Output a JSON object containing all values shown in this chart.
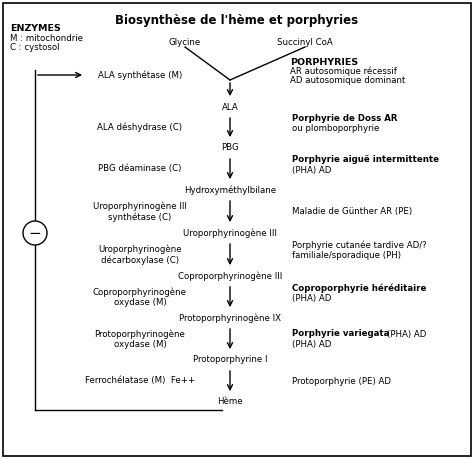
{
  "title": "Biosynthèse de l'hème et porphyries",
  "background": "#ffffff",
  "enzymes_header": "ENZYMES",
  "enzymes_lines": [
    "M : mitochondrie",
    "C : cystosol"
  ],
  "porphyries_header": "PORPHYRIES",
  "porphyries_legend": [
    "AR autosomique récessif",
    "AD autosomique dominant"
  ],
  "glycine": "Glycine",
  "succinyl": "Succinyl CoA",
  "metabolites": [
    "ALA",
    "PBG",
    "Hydroxyméthylbilane",
    "Uroporphyrinogène III",
    "Coproporphyrinogène III",
    "Protoporphyrinogène IX",
    "Protoporphyrine I",
    "Hème"
  ],
  "left_enzymes": [
    "ALA synthétase (M)",
    "ALA déshydrase (C)",
    "PBG déaminase (C)",
    "Uroporphyrinogène III\nsynthétase (C)",
    "Uroporphyrinogène\ndécarboxylase (C)",
    "Coproporphyrinogène\noxydase (M)",
    "Protoporphyrinogène\noxydase (M)",
    "Ferrochélatase (M)  Fe++"
  ],
  "right_diseases": [
    [
      "Porphyrie de Doss AR",
      "ou plomboporphyrie"
    ],
    [
      "Porphyrie aiguë intermittente",
      "(PHA) AD"
    ],
    [
      "Maladie de Günther AR (PE)"
    ],
    [
      "Porphyrie cutanée tardive AD/?",
      "familiale/sporadique (PH)"
    ],
    [
      "Coproporphyrie héréditaire",
      "(PHA) AD"
    ],
    [
      "Porphyrie variegata",
      "(PHA) AD"
    ],
    [
      "Protoporphyrie (PE) AD"
    ]
  ],
  "right_diseases_bold_line": [
    0,
    0,
    -1,
    -1,
    0,
    0,
    -1
  ],
  "right_diseases_italic_part": [
    false,
    false,
    false,
    false,
    false,
    true,
    false
  ]
}
